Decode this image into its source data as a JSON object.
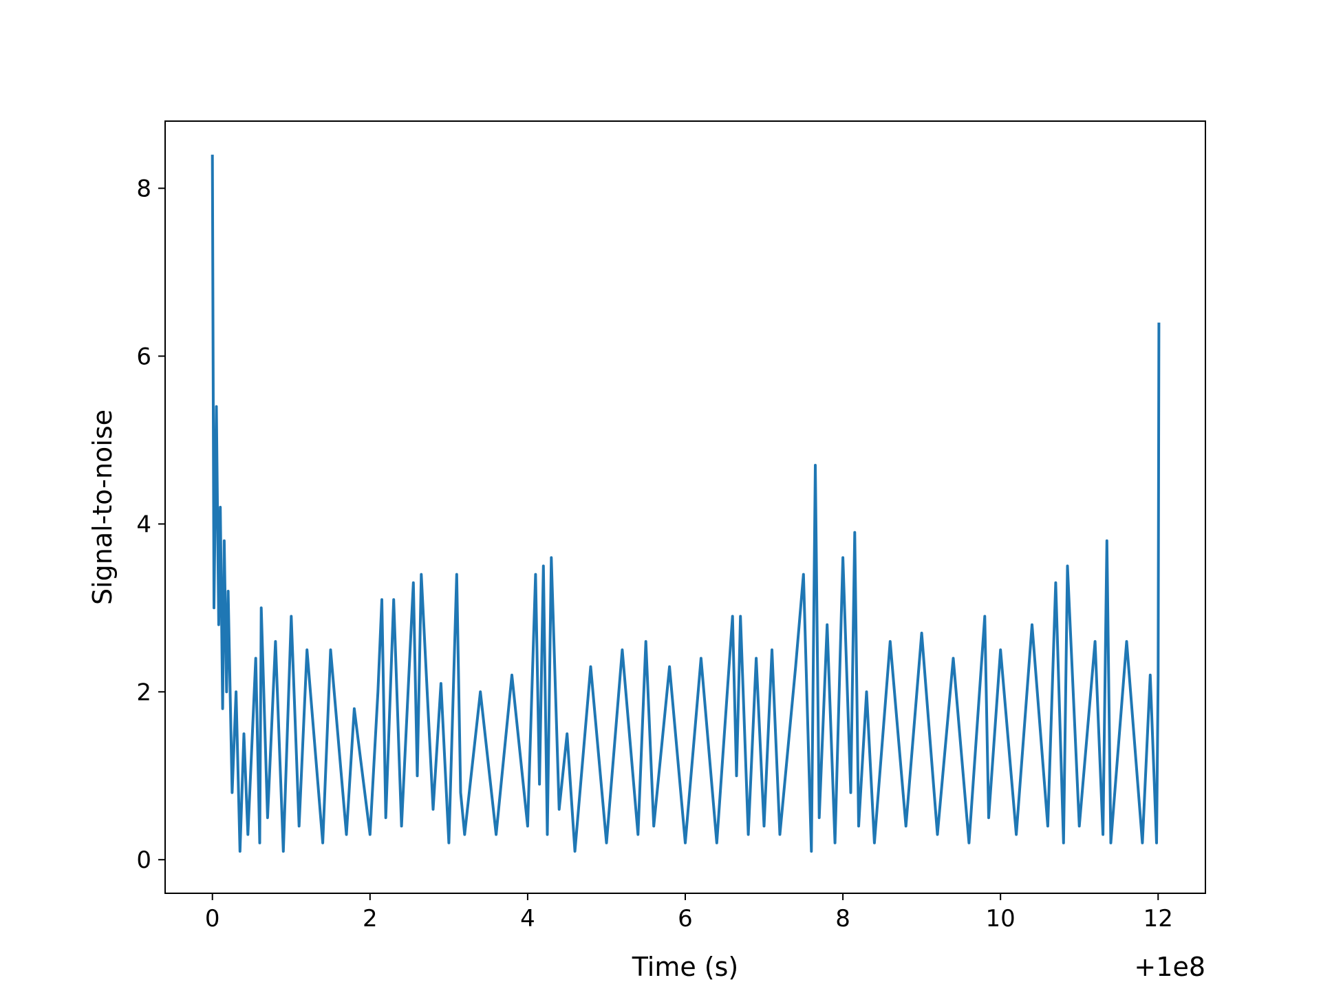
{
  "chart_data": {
    "type": "line",
    "xlabel": "Time (s)",
    "ylabel": "Signal-to-noise",
    "x_offset_label": "+1e8",
    "xlim": [
      -0.6,
      12.6
    ],
    "ylim": [
      -0.4,
      8.8
    ],
    "xticks": [
      0,
      2,
      4,
      6,
      8,
      10,
      12
    ],
    "yticks": [
      0,
      2,
      4,
      6,
      8
    ],
    "xtick_labels": [
      "0",
      "2",
      "4",
      "6",
      "8",
      "10",
      "12"
    ],
    "ytick_labels": [
      "0",
      "2",
      "4",
      "6",
      "8"
    ],
    "grid": false,
    "legend": "none",
    "line_color": "#1f77b4",
    "series": [
      {
        "x": [
          0.0,
          0.02,
          0.05,
          0.08,
          0.1,
          0.13,
          0.15,
          0.18,
          0.2,
          0.25,
          0.3,
          0.35,
          0.4,
          0.45,
          0.55,
          0.6,
          0.62,
          0.7,
          0.8,
          0.9,
          1.0,
          1.1,
          1.2,
          1.4,
          1.5,
          1.7,
          1.8,
          2.0,
          2.1,
          2.15,
          2.2,
          2.3,
          2.4,
          2.55,
          2.6,
          2.65,
          2.8,
          2.9,
          3.0,
          3.1,
          3.15,
          3.2,
          3.4,
          3.6,
          3.8,
          4.0,
          4.1,
          4.15,
          4.2,
          4.25,
          4.3,
          4.4,
          4.5,
          4.6,
          4.8,
          5.0,
          5.2,
          5.4,
          5.5,
          5.6,
          5.8,
          6.0,
          6.2,
          6.4,
          6.6,
          6.65,
          6.7,
          6.8,
          6.9,
          7.0,
          7.1,
          7.2,
          7.4,
          7.5,
          7.6,
          7.65,
          7.7,
          7.8,
          7.9,
          8.0,
          8.1,
          8.15,
          8.2,
          8.3,
          8.4,
          8.6,
          8.8,
          9.0,
          9.2,
          9.4,
          9.6,
          9.8,
          9.85,
          10.0,
          10.2,
          10.4,
          10.6,
          10.7,
          10.8,
          10.85,
          11.0,
          11.2,
          11.3,
          11.35,
          11.4,
          11.6,
          11.8,
          11.9,
          11.98,
          12.0,
          12.01
        ],
        "y": [
          8.4,
          3.0,
          5.4,
          2.8,
          4.2,
          1.8,
          3.8,
          2.0,
          3.2,
          0.8,
          2.0,
          0.1,
          1.5,
          0.3,
          2.4,
          0.2,
          3.0,
          0.5,
          2.6,
          0.1,
          2.9,
          0.4,
          2.5,
          0.2,
          2.5,
          0.3,
          1.8,
          0.3,
          2.0,
          3.1,
          0.5,
          3.1,
          0.4,
          3.3,
          1.0,
          3.4,
          0.6,
          2.1,
          0.2,
          3.4,
          0.8,
          0.3,
          2.0,
          0.3,
          2.2,
          0.4,
          3.4,
          0.9,
          3.5,
          0.3,
          3.6,
          0.6,
          1.5,
          0.1,
          2.3,
          0.2,
          2.5,
          0.3,
          2.6,
          0.4,
          2.3,
          0.2,
          2.4,
          0.2,
          2.9,
          1.0,
          2.9,
          0.3,
          2.4,
          0.4,
          2.5,
          0.3,
          2.3,
          3.4,
          0.1,
          4.7,
          0.5,
          2.8,
          0.2,
          3.6,
          0.8,
          3.9,
          0.4,
          2.0,
          0.2,
          2.6,
          0.4,
          2.7,
          0.3,
          2.4,
          0.2,
          2.9,
          0.5,
          2.5,
          0.3,
          2.8,
          0.4,
          3.3,
          0.2,
          3.5,
          0.4,
          2.6,
          0.3,
          3.8,
          0.2,
          2.6,
          0.2,
          2.2,
          0.2,
          2.2,
          6.4
        ]
      }
    ]
  }
}
